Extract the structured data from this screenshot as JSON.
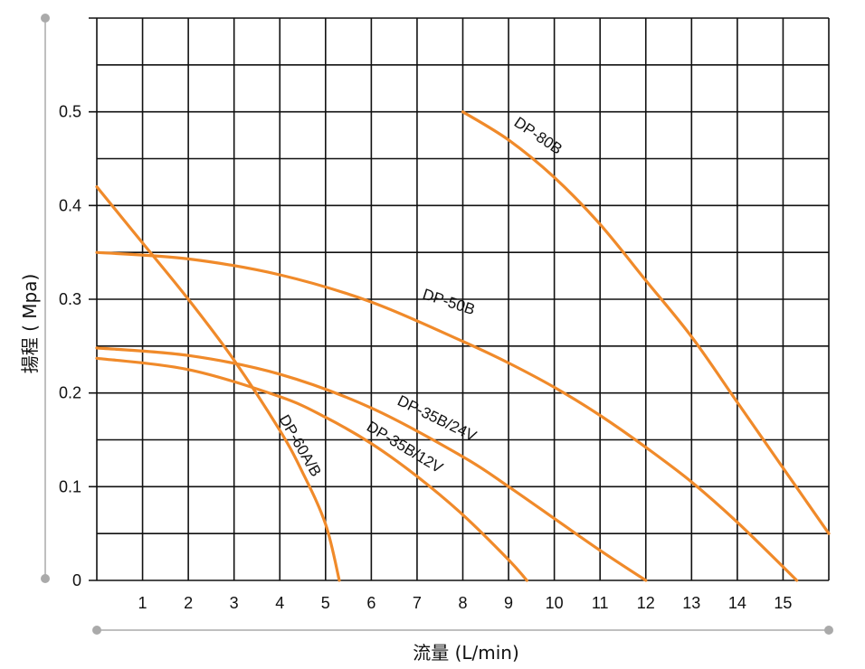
{
  "chart_data": {
    "type": "line",
    "title": "",
    "xlabel": "流量 (L/min)",
    "ylabel": "揚程 ( Mpa)",
    "xlim": [
      0,
      16
    ],
    "ylim": [
      0,
      0.6
    ],
    "x_ticks": [
      "1",
      "2",
      "3",
      "4",
      "5",
      "6",
      "7",
      "8",
      "9",
      "10",
      "11",
      "12",
      "13",
      "14",
      "15"
    ],
    "y_ticks": [
      "0",
      "0.1",
      "0.2",
      "0.3",
      "0.4",
      "0.5"
    ],
    "grid": true,
    "line_color": "#f08a2a",
    "series": [
      {
        "name": "DP-80B",
        "x": [
          8,
          9,
          10,
          11,
          12,
          13,
          14,
          15,
          16
        ],
        "y": [
          0.5,
          0.47,
          0.43,
          0.38,
          0.32,
          0.26,
          0.19,
          0.12,
          0.05
        ]
      },
      {
        "name": "DP-50B",
        "x": [
          0,
          2,
          4,
          6,
          8,
          9,
          10,
          11,
          12,
          13,
          14,
          15.3
        ],
        "y": [
          0.35,
          0.343,
          0.326,
          0.297,
          0.255,
          0.232,
          0.206,
          0.176,
          0.142,
          0.105,
          0.062,
          0
        ]
      },
      {
        "name": "DP-35B/24V",
        "x": [
          0,
          2,
          4,
          6,
          8,
          9,
          10,
          11,
          12
        ],
        "y": [
          0.248,
          0.24,
          0.22,
          0.184,
          0.132,
          0.1,
          0.066,
          0.032,
          0
        ]
      },
      {
        "name": "DP-35B/12V",
        "x": [
          0,
          2,
          4,
          5,
          6,
          7,
          8,
          9,
          9.4
        ],
        "y": [
          0.237,
          0.225,
          0.196,
          0.174,
          0.146,
          0.111,
          0.07,
          0.022,
          0
        ]
      },
      {
        "name": "DP-60A/B",
        "x": [
          0,
          1,
          2,
          3,
          4,
          4.5,
          5,
          5.3
        ],
        "y": [
          0.42,
          0.36,
          0.3,
          0.235,
          0.16,
          0.115,
          0.06,
          0
        ]
      }
    ]
  }
}
